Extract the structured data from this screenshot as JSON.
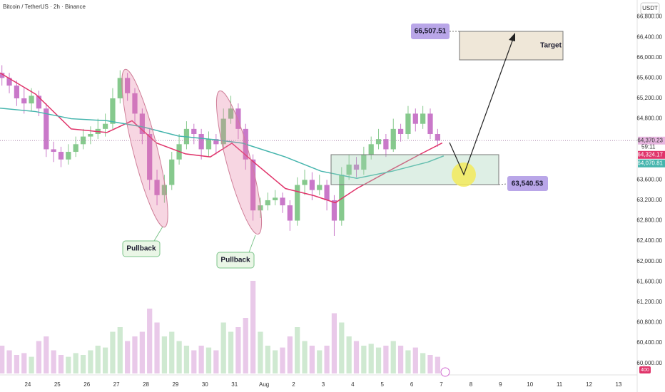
{
  "header": {
    "title": "Bitcoin / TetherUS · 2h · Binance",
    "currency": "USDT"
  },
  "chart_data": {
    "type": "candlestick",
    "x": [
      -0.875,
      -0.625,
      -0.375,
      -0.125,
      0.125,
      0.375,
      0.625,
      0.875,
      1.125,
      1.375,
      1.625,
      1.875,
      2.125,
      2.375,
      2.625,
      2.875,
      3.125,
      3.375,
      3.625,
      3.875,
      4.125,
      4.375,
      4.625,
      4.875,
      5.125,
      5.375,
      5.625,
      5.875,
      6.125,
      6.375,
      6.625,
      6.875,
      7.125,
      7.375,
      7.625,
      7.875,
      8.125,
      8.375,
      8.625,
      8.875,
      9.125,
      9.375,
      9.625,
      9.875,
      10.125,
      10.375,
      10.625,
      10.875,
      11.125,
      11.375,
      11.625,
      11.875,
      12.125,
      12.375,
      12.625,
      12.875,
      13.125,
      13.375,
      13.625,
      13.875
    ],
    "open": [
      65700,
      65600,
      65450,
      65200,
      65100,
      65250,
      65000,
      64200,
      64150,
      64000,
      64150,
      64300,
      64450,
      64500,
      64600,
      64700,
      65200,
      65600,
      65300,
      64900,
      64500,
      63600,
      63300,
      63500,
      64000,
      64300,
      64600,
      64500,
      64200,
      64400,
      64300,
      64800,
      65000,
      64600,
      64000,
      63000,
      63100,
      63200,
      63250,
      63100,
      62800,
      63500,
      63600,
      63400,
      63500,
      63200,
      62800,
      63700,
      63900,
      63800,
      64100,
      64300,
      64400,
      64200,
      64600,
      64500,
      64900,
      64700,
      64900,
      64500
    ],
    "high": [
      65850,
      65700,
      65550,
      65400,
      65400,
      65350,
      65100,
      64350,
      64250,
      64300,
      64450,
      64600,
      64650,
      64800,
      64900,
      65400,
      65750,
      65700,
      65400,
      65000,
      64600,
      63800,
      63700,
      64150,
      64500,
      64750,
      64700,
      64600,
      64550,
      64500,
      65000,
      65250,
      65100,
      64700,
      64100,
      63250,
      63350,
      63400,
      63350,
      63200,
      63650,
      63800,
      63750,
      63700,
      63600,
      63300,
      63850,
      64100,
      64050,
      64250,
      64450,
      64600,
      64500,
      64800,
      64700,
      65050,
      65000,
      65050,
      65000,
      64600
    ],
    "low": [
      65450,
      65300,
      65050,
      64900,
      64950,
      64850,
      64050,
      63950,
      63850,
      63900,
      64050,
      64200,
      64300,
      64400,
      64450,
      64600,
      65100,
      65150,
      64700,
      64300,
      63400,
      63100,
      63150,
      63400,
      63900,
      64200,
      64300,
      64000,
      64050,
      64100,
      64200,
      64700,
      64400,
      63800,
      62800,
      62850,
      63000,
      63100,
      62950,
      62600,
      62700,
      63300,
      63200,
      63300,
      63000,
      62500,
      62700,
      63600,
      63650,
      63700,
      64000,
      64200,
      64050,
      64150,
      64350,
      64400,
      64550,
      64600,
      64400,
      64250
    ],
    "close": [
      65600,
      65450,
      65200,
      65100,
      65250,
      65000,
      64200,
      64150,
      64000,
      64150,
      64300,
      64450,
      64500,
      64600,
      64700,
      65200,
      65600,
      65300,
      64900,
      64500,
      63600,
      63300,
      63500,
      64000,
      64300,
      64600,
      64500,
      64200,
      64400,
      64300,
      64800,
      65000,
      64600,
      64000,
      63000,
      63100,
      63200,
      63250,
      63100,
      62800,
      63500,
      63600,
      63400,
      63500,
      63200,
      62800,
      63700,
      63900,
      63800,
      64100,
      64300,
      64400,
      64200,
      64600,
      64500,
      64900,
      64700,
      64900,
      64500,
      64370
    ],
    "volume": [
      30,
      25,
      20,
      22,
      18,
      35,
      40,
      25,
      20,
      18,
      22,
      20,
      25,
      30,
      28,
      45,
      50,
      35,
      40,
      45,
      70,
      55,
      40,
      45,
      35,
      30,
      25,
      30,
      28,
      25,
      55,
      45,
      50,
      60,
      100,
      45,
      30,
      25,
      28,
      40,
      50,
      35,
      30,
      25,
      30,
      65,
      55,
      40,
      35,
      30,
      32,
      28,
      30,
      35,
      30,
      25,
      28,
      22,
      20,
      18
    ],
    "up_color": "#86c98d",
    "down_color": "#c978c9",
    "lines": [
      {
        "color": "#e0356b",
        "x": [
          -0.94,
          0.27,
          1.47,
          2.68,
          3.53,
          4.37,
          5.34,
          6.18,
          6.91,
          7.75,
          8.72,
          9.69,
          10.41,
          11.14,
          12.34,
          13.31,
          14.03
        ],
        "values": [
          65700,
          65280,
          64600,
          64530,
          64760,
          64320,
          64110,
          64050,
          64320,
          63900,
          63430,
          63290,
          63150,
          63430,
          63810,
          64110,
          64324
        ]
      },
      {
        "color": "#45b5ad",
        "x": [
          -0.94,
          0.27,
          1.47,
          2.68,
          3.89,
          5.1,
          6.3,
          7.27,
          8.72,
          9.93,
          11.14,
          12.34,
          13.55,
          14.08
        ],
        "values": [
          65007,
          64940,
          64800,
          64760,
          64640,
          64460,
          64390,
          64320,
          64050,
          63770,
          63630,
          63770,
          63950,
          64070
        ]
      }
    ],
    "xlim": [
      -0.94,
      20.63
    ],
    "xticks": [
      {
        "value": 0,
        "label": "24"
      },
      {
        "value": 1,
        "label": "25"
      },
      {
        "value": 2,
        "label": "26"
      },
      {
        "value": 3,
        "label": "27"
      },
      {
        "value": 4,
        "label": "28"
      },
      {
        "value": 5,
        "label": "29"
      },
      {
        "value": 6,
        "label": "30"
      },
      {
        "value": 7,
        "label": "31"
      },
      {
        "value": 8,
        "label": "Aug"
      },
      {
        "value": 9,
        "label": "2"
      },
      {
        "value": 10,
        "label": "3"
      },
      {
        "value": 11,
        "label": "4"
      },
      {
        "value": 12,
        "label": "5"
      },
      {
        "value": 13,
        "label": "6"
      },
      {
        "value": 14,
        "label": "7"
      },
      {
        "value": 15,
        "label": "8"
      },
      {
        "value": 16,
        "label": "9"
      },
      {
        "value": 17,
        "label": "10"
      },
      {
        "value": 18,
        "label": "11"
      },
      {
        "value": 19,
        "label": "12"
      },
      {
        "value": 20,
        "label": "13"
      }
    ],
    "ylim": [
      59800,
      67130
    ],
    "yticks": [
      {
        "value": 60000,
        "label": "60,000.00"
      },
      {
        "value": 60400,
        "label": "60,400.00"
      },
      {
        "value": 60800,
        "label": "60,800.00"
      },
      {
        "value": 61200,
        "label": "61,200.00"
      },
      {
        "value": 61600,
        "label": "61,600.00"
      },
      {
        "value": 62000,
        "label": "62,000.00"
      },
      {
        "value": 62400,
        "label": "62,400.00"
      },
      {
        "value": 62800,
        "label": "62,800.00"
      },
      {
        "value": 63200,
        "label": "63,200.00"
      },
      {
        "value": 63600,
        "label": "63,600.00"
      },
      {
        "value": 64800,
        "label": "64,800.00"
      },
      {
        "value": 65200,
        "label": "65,200.00"
      },
      {
        "value": 65600,
        "label": "65,600.00"
      },
      {
        "value": 66000,
        "label": "66,000.00"
      },
      {
        "value": 66400,
        "label": "66,400.00"
      },
      {
        "value": 66800,
        "label": "66,800.00"
      }
    ],
    "price_labels": [
      {
        "value": 64370.23,
        "label": "64,370.23",
        "color": "#e7b6e0"
      },
      {
        "value": 64324.17,
        "label": "64,324.17",
        "color": "#e0356b"
      },
      {
        "value": 64070.81,
        "label": "64,070.81",
        "color": "#45b5ad"
      }
    ],
    "countdown": "59:11",
    "volume_label": "400",
    "annotations": {
      "target_price": "66,507.51",
      "target": "Target",
      "support_price": "63,540.53",
      "pullbacks": [
        "Pullback",
        "Pullback"
      ]
    }
  }
}
